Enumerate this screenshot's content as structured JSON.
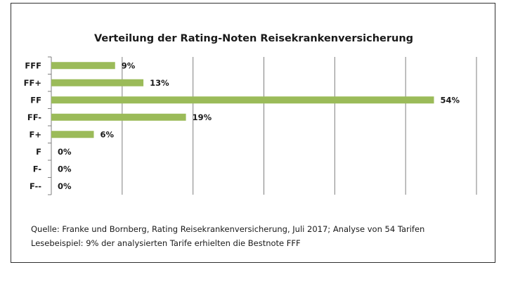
{
  "chart_data": {
    "type": "bar",
    "orientation": "horizontal",
    "title": "Verteilung der Rating-Noten Reisekrankenversicherung",
    "categories": [
      "FFF",
      "FF+",
      "FF",
      "FF-",
      "F+",
      "F",
      "F-",
      "F--"
    ],
    "values": [
      9,
      13,
      54,
      19,
      6,
      0,
      0,
      0
    ],
    "value_labels": [
      "9%",
      "13%",
      "54%",
      "19%",
      "6%",
      "0%",
      "0%",
      "0%"
    ],
    "unit": "%",
    "xlim": [
      0,
      60
    ],
    "x_gridline_step": 10,
    "grid": "vertical",
    "bar_color": "#9bbb59",
    "gridline_color": "#7f7f7f",
    "legend": "none"
  },
  "footer": {
    "source_line": "Quelle: Franke und Bornberg, Rating Reisekrankenversicherung, Juli 2017; Analyse von 54 Tarifen",
    "reading_example": "Lesebeispiel: 9% der analysierten Tarife  erhielten die Bestnote FFF"
  }
}
